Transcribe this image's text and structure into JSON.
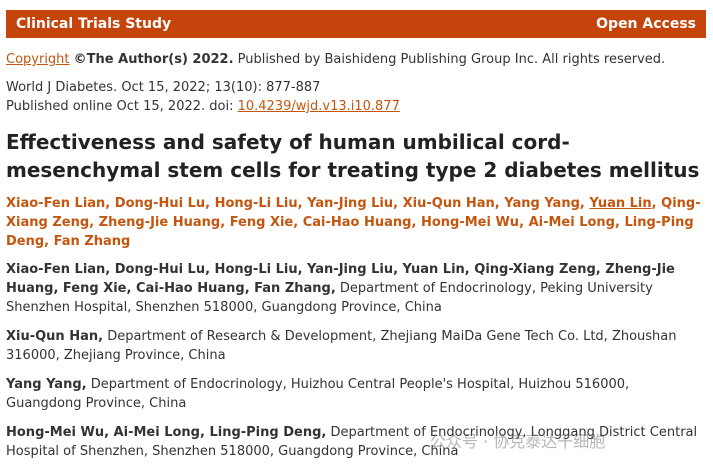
{
  "header": {
    "section": "Clinical Trials Study",
    "access": "Open Access"
  },
  "copyright": {
    "link": "Copyright",
    "holder": "©The Author(s) 2022.",
    "text": "Published by Baishideng Publishing Group Inc. All rights reserved."
  },
  "citation": "World J Diabetes. Oct 15, 2022; 13(10): 877-887",
  "published": {
    "text": "Published online Oct 15, 2022. doi:",
    "doi": "10.4239/wjd.v13.i10.877"
  },
  "title": "Effectiveness and safety of human umbilical cord-mesenchymal stem cells for treating type 2 diabetes mellitus",
  "authors": {
    "separator": ",",
    "names": [
      "Xiao-Fen Lian",
      "Dong-Hui Lu",
      "Hong-Li Liu",
      "Yan-Jing Liu",
      "Xiu-Qun Han",
      "Yang Yang",
      "Yuan Lin",
      "Qing-Xiang Zeng",
      "Zheng-Jie Huang",
      "Feng Xie",
      "Cai-Hao Huang",
      "Hong-Mei Wu",
      "Ai-Mei Long",
      "Ling-Ping Deng",
      "Fan Zhang"
    ],
    "underlined": [
      6
    ]
  },
  "affiliations": [
    {
      "names": "Xiao-Fen Lian, Dong-Hui Lu, Hong-Li Liu, Yan-Jing Liu, Yuan Lin, Qing-Xiang Zeng, Zheng-Jie Huang, Feng Xie, Cai-Hao Huang, Fan Zhang,",
      "text": "Department of Endocrinology, Peking University Shenzhen Hospital, Shenzhen 518000, Guangdong Province, China"
    },
    {
      "names": "Xiu-Qun Han,",
      "text": "Department of Research & Development, Zhejiang MaiDa Gene Tech Co. Ltd, Zhoushan 316000, Zhejiang Province, China"
    },
    {
      "names": "Yang Yang,",
      "text": "Department of Endocrinology, Huizhou Central People's Hospital, Huizhou 516000, Guangdong Province, China"
    },
    {
      "names": "Hong-Mei Wu, Ai-Mei Long, Ling-Ping Deng,",
      "text": "Department of Endocrinology, Longgang District Central Hospital of Shenzhen, Shenzhen 518000, Guangdong Province, China"
    }
  ],
  "watermark": "公众号 · 协克泰达干细胞"
}
